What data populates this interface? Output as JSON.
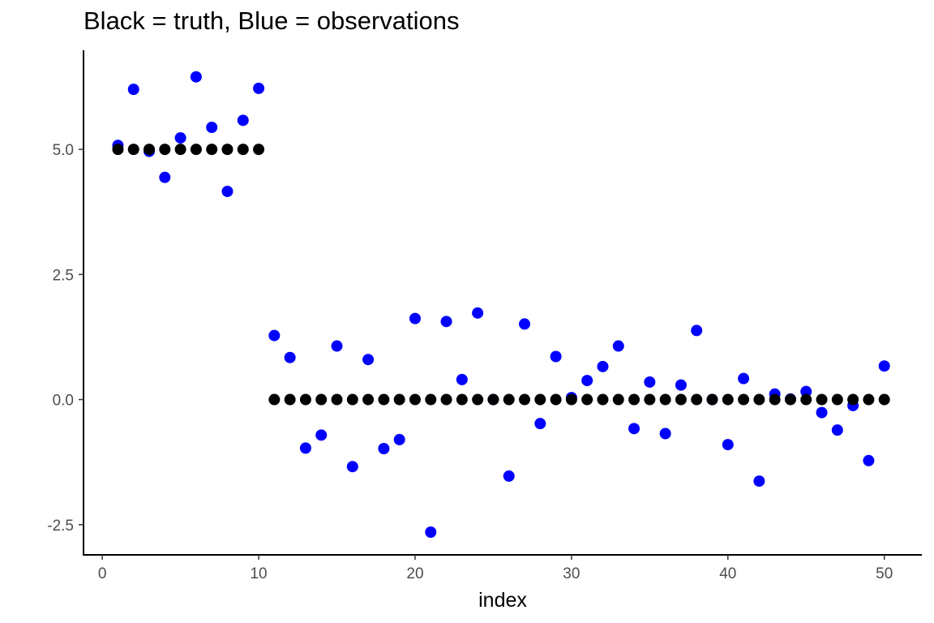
{
  "chart_data": {
    "type": "scatter",
    "title": "Black = truth, Blue = observations",
    "xlabel": "index",
    "ylabel": "",
    "xlim": [
      -1.2,
      52.4
    ],
    "ylim": [
      -3.12,
      6.98
    ],
    "x_ticks": [
      0,
      10,
      20,
      30,
      40,
      50
    ],
    "x_tick_labels": [
      "0",
      "10",
      "20",
      "30",
      "40",
      "50"
    ],
    "y_ticks": [
      -2.5,
      0,
      2.5,
      5
    ],
    "y_tick_labels": [
      "-2.5",
      "0.0",
      "2.5",
      "5.0"
    ],
    "grid": false,
    "legend": "none",
    "x": [
      1,
      2,
      3,
      4,
      5,
      6,
      7,
      8,
      9,
      10,
      11,
      12,
      13,
      14,
      15,
      16,
      17,
      18,
      19,
      20,
      21,
      22,
      23,
      24,
      25,
      26,
      27,
      28,
      29,
      30,
      31,
      32,
      33,
      34,
      35,
      36,
      37,
      38,
      39,
      40,
      41,
      42,
      43,
      44,
      45,
      46,
      47,
      48,
      49,
      50
    ],
    "series": [
      {
        "color": "#0000ff",
        "values": [
          5.08,
          6.2,
          4.96,
          4.44,
          5.23,
          6.45,
          5.44,
          4.16,
          5.58,
          6.22,
          1.28,
          0.84,
          -0.97,
          -0.71,
          1.07,
          -1.34,
          0.8,
          -0.98,
          -0.8,
          1.62,
          -2.65,
          1.56,
          0.4,
          1.73,
          0.0,
          -1.53,
          1.51,
          -0.48,
          0.86,
          0.04,
          0.38,
          0.66,
          1.07,
          -0.58,
          0.35,
          -0.68,
          0.29,
          1.38,
          0.0,
          -0.9,
          0.42,
          -1.63,
          0.11,
          0.01,
          0.16,
          -0.26,
          -0.61,
          -0.12,
          -1.22,
          0.67
        ]
      },
      {
        "color": "#000000",
        "values": [
          5,
          5,
          5,
          5,
          5,
          5,
          5,
          5,
          5,
          5,
          0,
          0,
          0,
          0,
          0,
          0,
          0,
          0,
          0,
          0,
          0,
          0,
          0,
          0,
          0,
          0,
          0,
          0,
          0,
          0,
          0,
          0,
          0,
          0,
          0,
          0,
          0,
          0,
          0,
          0,
          0,
          0,
          0,
          0,
          0,
          0,
          0,
          0,
          0,
          0
        ]
      }
    ]
  }
}
